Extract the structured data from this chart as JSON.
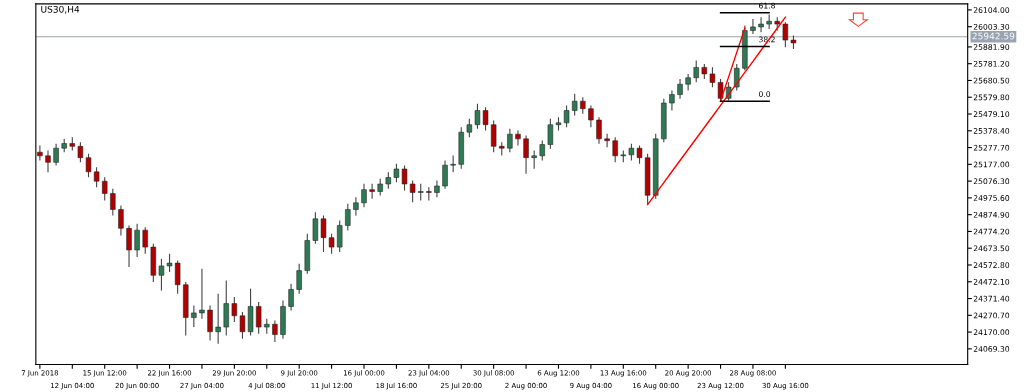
{
  "chart_data": {
    "type": "candlestick",
    "title": "US30,H4",
    "categories": [
      "7 Jun 2018",
      null,
      null,
      null,
      "12 Jun 04:00",
      null,
      null,
      null,
      "15 Jun 12:00",
      null,
      null,
      null,
      "20 Jun 00:00",
      null,
      null,
      null,
      "22 Jun 16:00",
      null,
      null,
      null,
      "27 Jun 04:00",
      null,
      null,
      null,
      "29 Jun 20:00",
      null,
      null,
      null,
      "4 Jul 08:00",
      null,
      null,
      null,
      "9 Jul 20:00",
      null,
      null,
      null,
      "11 Jul 12:00",
      null,
      null,
      null,
      "16 Jul 00:00",
      null,
      null,
      null,
      "18 Jul 16:00",
      null,
      null,
      null,
      "23 Jul 04:00",
      null,
      null,
      null,
      "25 Jul 20:00",
      null,
      null,
      null,
      "30 Jul 08:00",
      null,
      null,
      null,
      "2 Aug 00:00",
      null,
      null,
      null,
      "6 Aug 12:00",
      null,
      null,
      null,
      "9 Aug 04:00",
      null,
      null,
      null,
      "13 Aug 16:00",
      null,
      null,
      null,
      "16 Aug 00:00",
      null,
      null,
      null,
      "20 Aug 20:00",
      null,
      null,
      null,
      "23 Aug 12:00",
      null,
      null,
      null,
      "28 Aug 08:00",
      null,
      null,
      null,
      "30 Aug 16:00",
      null,
      null,
      null,
      null,
      null,
      null,
      null,
      null,
      null,
      null,
      null,
      null,
      null,
      null,
      null,
      null,
      null,
      null,
      null,
      null,
      null,
      null
    ],
    "ohlc": [
      [
        25250,
        25290,
        25200,
        25228
      ],
      [
        25228,
        25260,
        25130,
        25189
      ],
      [
        25189,
        25300,
        25170,
        25274
      ],
      [
        25274,
        25330,
        25250,
        25302
      ],
      [
        25302,
        25340,
        25260,
        25285
      ],
      [
        25285,
        25310,
        25190,
        25217
      ],
      [
        25217,
        25240,
        25100,
        25132
      ],
      [
        25132,
        25160,
        25040,
        25076
      ],
      [
        25076,
        25100,
        24960,
        25002
      ],
      [
        25002,
        25030,
        24870,
        24906
      ],
      [
        24906,
        24930,
        24750,
        24793
      ],
      [
        24793,
        24810,
        24560,
        24663
      ],
      [
        24663,
        24820,
        24620,
        24782
      ],
      [
        24782,
        24800,
        24640,
        24680
      ],
      [
        24680,
        24700,
        24470,
        24511
      ],
      [
        24511,
        24610,
        24420,
        24567
      ],
      [
        24567,
        24640,
        24530,
        24584
      ],
      [
        24584,
        24600,
        24400,
        24454
      ],
      [
        24454,
        24470,
        24150,
        24257
      ],
      [
        24257,
        24330,
        24200,
        24285
      ],
      [
        24285,
        24550,
        24250,
        24302
      ],
      [
        24302,
        24330,
        24120,
        24172
      ],
      [
        24172,
        24400,
        24100,
        24200
      ],
      [
        24200,
        24480,
        24150,
        24341
      ],
      [
        24341,
        24380,
        24230,
        24268
      ],
      [
        24268,
        24290,
        24130,
        24172
      ],
      [
        24172,
        24430,
        24150,
        24324
      ],
      [
        24324,
        24350,
        24160,
        24200
      ],
      [
        24200,
        24250,
        24160,
        24217
      ],
      [
        24217,
        24240,
        24110,
        24155
      ],
      [
        24155,
        24360,
        24130,
        24324
      ],
      [
        24324,
        24460,
        24300,
        24426
      ],
      [
        24426,
        24580,
        24400,
        24539
      ],
      [
        24539,
        24760,
        24520,
        24720
      ],
      [
        24720,
        24890,
        24700,
        24850
      ],
      [
        24850,
        24870,
        24650,
        24737
      ],
      [
        24737,
        24760,
        24640,
        24680
      ],
      [
        24680,
        24840,
        24650,
        24810
      ],
      [
        24810,
        24940,
        24780,
        24906
      ],
      [
        24906,
        24980,
        24870,
        24946
      ],
      [
        24946,
        25060,
        24920,
        25025
      ],
      [
        25025,
        25060,
        24970,
        25014
      ],
      [
        25014,
        25090,
        24990,
        25059
      ],
      [
        25059,
        25130,
        25030,
        25098
      ],
      [
        25098,
        25180,
        25070,
        25149
      ],
      [
        25149,
        25170,
        25020,
        25059
      ],
      [
        25059,
        25080,
        24950,
        25008
      ],
      [
        25008,
        25060,
        24960,
        25014
      ],
      [
        25014,
        25040,
        24960,
        25008
      ],
      [
        25008,
        25080,
        24980,
        25047
      ],
      [
        25047,
        25200,
        25030,
        25172
      ],
      [
        25172,
        25230,
        25130,
        25177
      ],
      [
        25177,
        25400,
        25150,
        25370
      ],
      [
        25370,
        25450,
        25340,
        25415
      ],
      [
        25415,
        25540,
        25390,
        25500
      ],
      [
        25500,
        25520,
        25380,
        25415
      ],
      [
        25415,
        25440,
        25250,
        25285
      ],
      [
        25285,
        25310,
        25230,
        25274
      ],
      [
        25274,
        25390,
        25250,
        25358
      ],
      [
        25358,
        25380,
        25290,
        25330
      ],
      [
        25330,
        25350,
        25120,
        25217
      ],
      [
        25217,
        25260,
        25150,
        25228
      ],
      [
        25228,
        25320,
        25200,
        25296
      ],
      [
        25296,
        25450,
        25270,
        25415
      ],
      [
        25415,
        25460,
        25380,
        25426
      ],
      [
        25426,
        25530,
        25400,
        25500
      ],
      [
        25500,
        25600,
        25470,
        25556
      ],
      [
        25556,
        25580,
        25480,
        25511
      ],
      [
        25511,
        25530,
        25400,
        25443
      ],
      [
        25443,
        25460,
        25300,
        25330
      ],
      [
        25330,
        25360,
        25280,
        25319
      ],
      [
        25319,
        25340,
        25190,
        25228
      ],
      [
        25228,
        25260,
        25190,
        25234
      ],
      [
        25234,
        25300,
        25200,
        25274
      ],
      [
        25274,
        25290,
        25180,
        25217
      ],
      [
        25217,
        25240,
        24935,
        24991
      ],
      [
        24991,
        25360,
        24970,
        25330
      ],
      [
        25330,
        25570,
        25310,
        25545
      ],
      [
        25545,
        25620,
        25500,
        25596
      ],
      [
        25596,
        25690,
        25570,
        25658
      ],
      [
        25658,
        25720,
        25620,
        25697
      ],
      [
        25697,
        25800,
        25670,
        25759
      ],
      [
        25759,
        25780,
        25690,
        25720
      ],
      [
        25720,
        25760,
        25640,
        25669
      ],
      [
        25669,
        25690,
        25556,
        25573
      ],
      [
        25573,
        25670,
        25560,
        25641
      ],
      [
        25641,
        25780,
        25620,
        25754
      ],
      [
        25754,
        26010,
        25740,
        25980
      ],
      [
        25980,
        26050,
        25960,
        26002
      ],
      [
        26002,
        26060,
        25970,
        26019
      ],
      [
        26019,
        26076,
        25990,
        26036
      ],
      [
        26036,
        26060,
        25980,
        26019
      ],
      [
        26019,
        26030,
        25880,
        25923
      ],
      [
        25923,
        25950,
        25870,
        25906
      ],
      null,
      null,
      null,
      null,
      null,
      null,
      null,
      null,
      null,
      null,
      null,
      null,
      null,
      null,
      null,
      null,
      null,
      null,
      null,
      null,
      null
    ],
    "series": [
      {
        "type": "line",
        "color": "#ff0000",
        "values": [
          null,
          null,
          null,
          null,
          null,
          null,
          null,
          null,
          null,
          null,
          null,
          null,
          null,
          null,
          null,
          null,
          null,
          null,
          null,
          null,
          null,
          null,
          null,
          null,
          null,
          null,
          null,
          null,
          null,
          null,
          null,
          null,
          null,
          null,
          null,
          null,
          null,
          null,
          null,
          null,
          null,
          null,
          null,
          null,
          null,
          null,
          null,
          null,
          null,
          null,
          null,
          null,
          null,
          null,
          null,
          null,
          null,
          null,
          null,
          null,
          null,
          null,
          null,
          null,
          null,
          null,
          null,
          null,
          null,
          null,
          null,
          null,
          null,
          null,
          null,
          24935,
          25001,
          25067,
          25134,
          25200,
          25266,
          25332,
          25398,
          25464,
          25531,
          25597,
          25663,
          25729,
          25795,
          25862,
          25928,
          25994,
          26060,
          null,
          null,
          null,
          null,
          null,
          null,
          null,
          null,
          null,
          null,
          null,
          null,
          null,
          null,
          null,
          null,
          null,
          null,
          null,
          null,
          null,
          null
        ]
      },
      {
        "type": "line",
        "color": "#ff0000",
        "values": [
          null,
          null,
          null,
          null,
          null,
          null,
          null,
          null,
          null,
          null,
          null,
          null,
          null,
          null,
          null,
          null,
          null,
          null,
          null,
          null,
          null,
          null,
          null,
          null,
          null,
          null,
          null,
          null,
          null,
          null,
          null,
          null,
          null,
          null,
          null,
          null,
          null,
          null,
          null,
          null,
          null,
          null,
          null,
          null,
          null,
          null,
          null,
          null,
          null,
          null,
          null,
          null,
          null,
          null,
          null,
          null,
          null,
          null,
          null,
          null,
          null,
          null,
          null,
          null,
          null,
          null,
          null,
          null,
          null,
          null,
          null,
          null,
          null,
          null,
          null,
          null,
          null,
          null,
          null,
          null,
          null,
          null,
          null,
          null,
          25556,
          25702,
          25849,
          25995,
          null,
          null,
          null,
          null,
          null,
          null,
          null,
          null,
          null,
          null,
          null,
          null,
          null,
          null,
          null,
          null,
          null,
          null,
          null,
          null,
          null,
          null,
          null,
          null,
          null,
          null,
          null
        ]
      },
      {
        "type": "line",
        "color": "#000000",
        "values": [
          null,
          null,
          null,
          null,
          null,
          null,
          null,
          null,
          null,
          null,
          null,
          null,
          null,
          null,
          null,
          null,
          null,
          null,
          null,
          null,
          null,
          null,
          null,
          null,
          null,
          null,
          null,
          null,
          null,
          null,
          null,
          null,
          null,
          null,
          null,
          null,
          null,
          null,
          null,
          null,
          null,
          null,
          null,
          null,
          null,
          null,
          null,
          null,
          null,
          null,
          null,
          null,
          null,
          null,
          null,
          null,
          null,
          null,
          null,
          null,
          null,
          null,
          null,
          null,
          null,
          null,
          null,
          null,
          null,
          null,
          null,
          null,
          null,
          null,
          null,
          null,
          null,
          null,
          null,
          null,
          null,
          null,
          null,
          null,
          26087,
          26087,
          26087,
          26087,
          26087,
          26087,
          26087,
          null,
          null,
          null,
          null,
          null,
          null,
          null,
          null,
          null,
          null,
          null,
          null,
          null,
          null,
          null,
          null,
          null,
          null,
          null,
          null,
          null,
          null,
          null,
          null
        ]
      },
      {
        "type": "line",
        "color": "#000000",
        "values": [
          null,
          null,
          null,
          null,
          null,
          null,
          null,
          null,
          null,
          null,
          null,
          null,
          null,
          null,
          null,
          null,
          null,
          null,
          null,
          null,
          null,
          null,
          null,
          null,
          null,
          null,
          null,
          null,
          null,
          null,
          null,
          null,
          null,
          null,
          null,
          null,
          null,
          null,
          null,
          null,
          null,
          null,
          null,
          null,
          null,
          null,
          null,
          null,
          null,
          null,
          null,
          null,
          null,
          null,
          null,
          null,
          null,
          null,
          null,
          null,
          null,
          null,
          null,
          null,
          null,
          null,
          null,
          null,
          null,
          null,
          null,
          null,
          null,
          null,
          null,
          null,
          null,
          null,
          null,
          null,
          null,
          null,
          null,
          null,
          25884,
          25884,
          25884,
          25884,
          25884,
          25884,
          25884,
          null,
          null,
          null,
          null,
          null,
          null,
          null,
          null,
          null,
          null,
          null,
          null,
          null,
          null,
          null,
          null,
          null,
          null,
          null,
          null,
          null,
          null,
          null,
          null
        ]
      },
      {
        "type": "line",
        "color": "#000000",
        "values": [
          null,
          null,
          null,
          null,
          null,
          null,
          null,
          null,
          null,
          null,
          null,
          null,
          null,
          null,
          null,
          null,
          null,
          null,
          null,
          null,
          null,
          null,
          null,
          null,
          null,
          null,
          null,
          null,
          null,
          null,
          null,
          null,
          null,
          null,
          null,
          null,
          null,
          null,
          null,
          null,
          null,
          null,
          null,
          null,
          null,
          null,
          null,
          null,
          null,
          null,
          null,
          null,
          null,
          null,
          null,
          null,
          null,
          null,
          null,
          null,
          null,
          null,
          null,
          null,
          null,
          null,
          null,
          null,
          null,
          null,
          null,
          null,
          null,
          null,
          null,
          null,
          null,
          null,
          null,
          null,
          null,
          null,
          null,
          null,
          25556,
          25556,
          25556,
          25556,
          25556,
          25556,
          25556,
          null,
          null,
          null,
          null,
          null,
          null,
          null,
          null,
          null,
          null,
          null,
          null,
          null,
          null,
          null,
          null,
          null,
          null,
          null,
          null,
          null,
          null,
          null,
          null
        ]
      }
    ],
    "annotations": [
      {
        "text": "61.8",
        "x": "28 Aug 08:00",
        "y": 26087
      },
      {
        "text": "38.2",
        "x": "28 Aug 08:00",
        "y": 25884
      },
      {
        "text": "0.0",
        "x": "28 Aug 08:00",
        "y": 25556
      }
    ],
    "ref_lines": [
      {
        "axis": "y",
        "value": 25942.59,
        "label": "25942.59",
        "color": "#9aa4b0"
      }
    ],
    "ylim": [
      23975,
      26140
    ],
    "yticks": [
      {
        "value": 24069.3,
        "label": "24069.30"
      },
      {
        "value": 24170,
        "label": "24170.00"
      },
      {
        "value": 24270.7,
        "label": "24270.70"
      },
      {
        "value": 24371.4,
        "label": "24371.40"
      },
      {
        "value": 24472.1,
        "label": "24472.10"
      },
      {
        "value": 24572.8,
        "label": "24572.80"
      },
      {
        "value": 24673.5,
        "label": "24673.50"
      },
      {
        "value": 24774.2,
        "label": "24774.20"
      },
      {
        "value": 24874.9,
        "label": "24874.90"
      },
      {
        "value": 24975.6,
        "label": "24975.60"
      },
      {
        "value": 25076.3,
        "label": "25076.30"
      },
      {
        "value": 25177,
        "label": "25177.00"
      },
      {
        "value": 25277.7,
        "label": "25277.70"
      },
      {
        "value": 25378.4,
        "label": "25378.40"
      },
      {
        "value": 25479.1,
        "label": "25479.10"
      },
      {
        "value": 25579.8,
        "label": "25579.80"
      },
      {
        "value": 25680.5,
        "label": "25680.50"
      },
      {
        "value": 25781.2,
        "label": "25781.20"
      },
      {
        "value": 25881.9,
        "label": "25881.90"
      },
      {
        "value": 26003.3,
        "label": "26003.30"
      },
      {
        "value": 26104,
        "label": "26104.00"
      }
    ],
    "grid": false,
    "legend": false
  }
}
